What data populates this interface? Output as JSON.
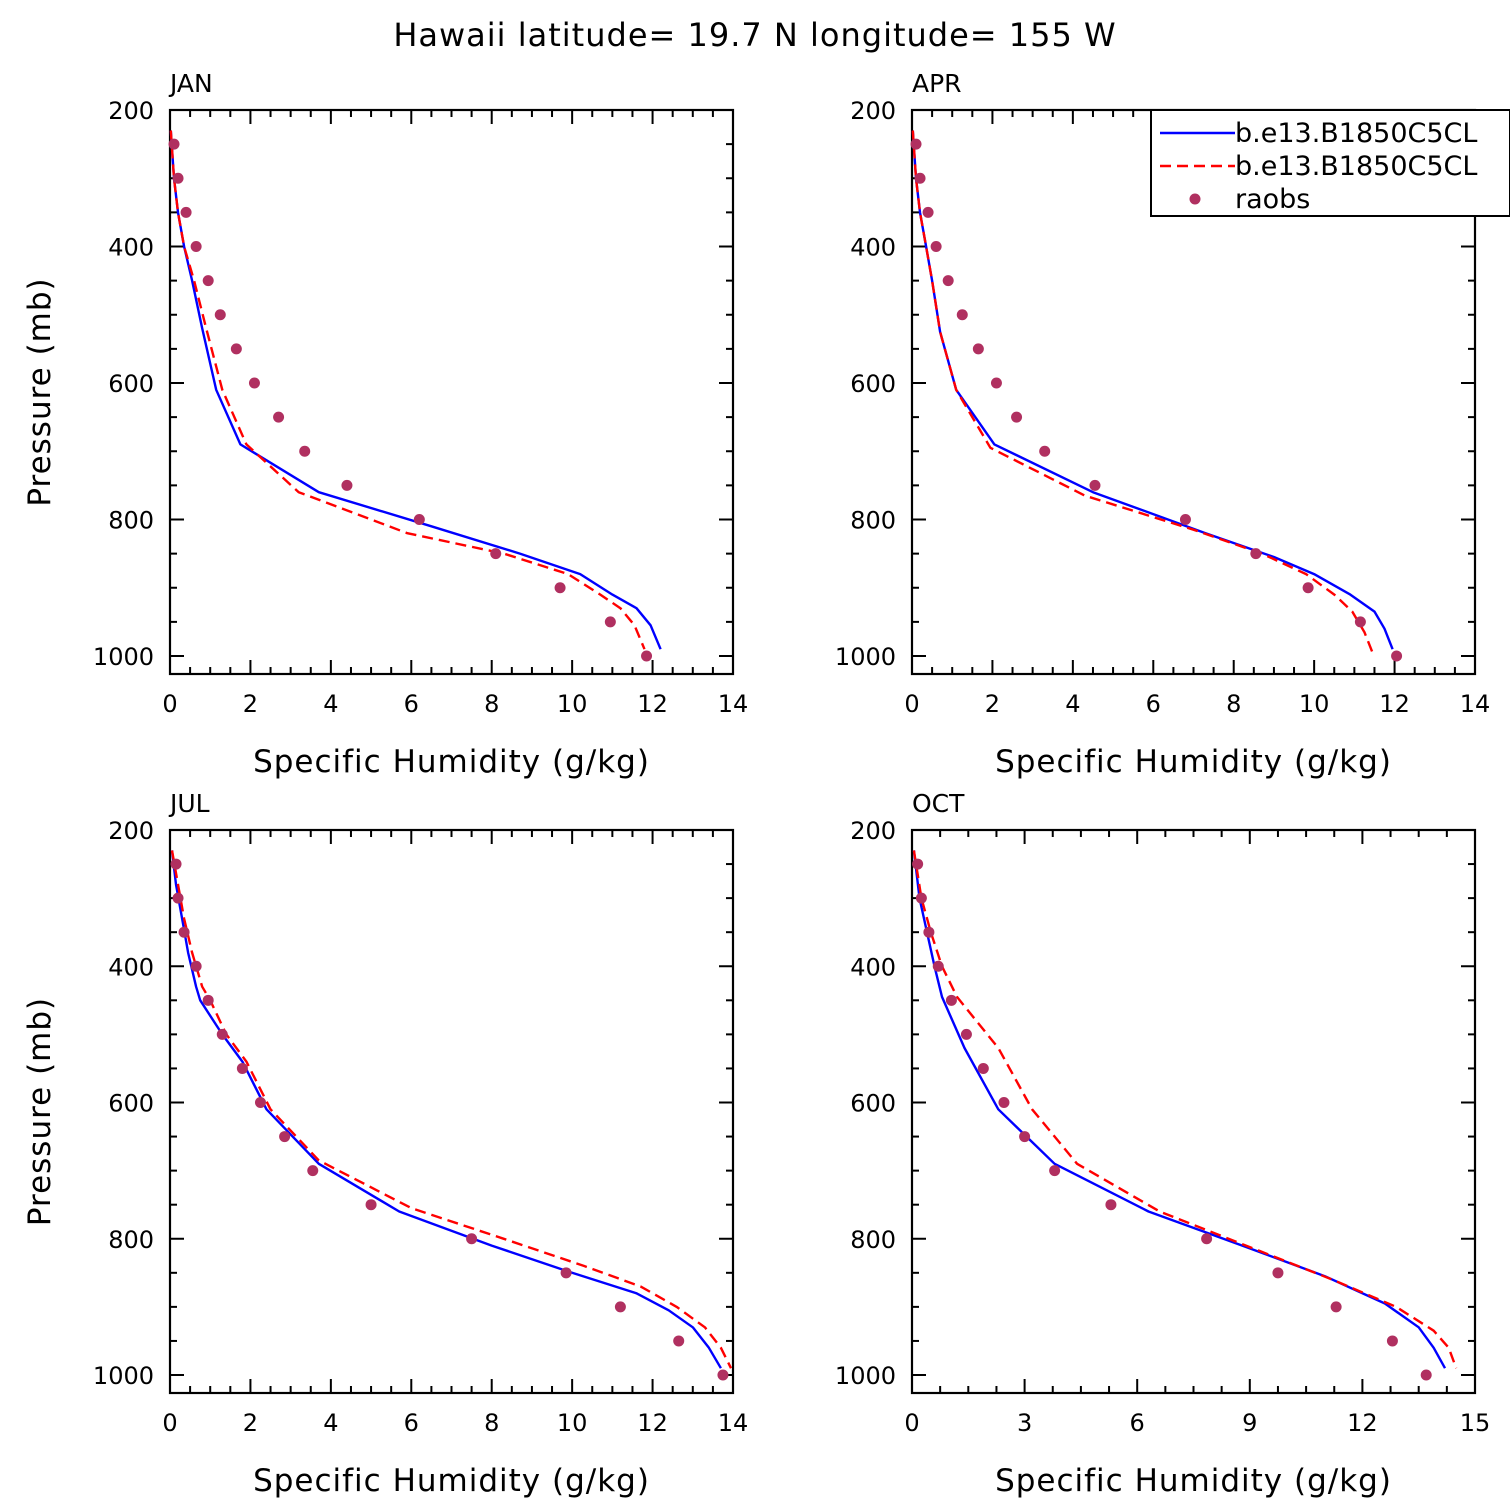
{
  "figure": {
    "title": "Hawaii  latitude= 19.7 N longitude= 155 W"
  },
  "legend": {
    "entries": [
      {
        "label": "b.e13.B1850C5CL",
        "style": "solid",
        "color": "#0000ff"
      },
      {
        "label": "b.e13.B1850C5CL",
        "style": "dashed",
        "color": "#ff0000"
      },
      {
        "label": "raobs",
        "style": "marker",
        "color": "#b03060"
      }
    ]
  },
  "chart_data": [
    {
      "type": "line",
      "panel_label": "JAN",
      "xlabel": "Specific Humidity (g/kg)",
      "ylabel": "Pressure (mb)",
      "xlim": [
        0,
        14
      ],
      "ylim": [
        1000,
        200
      ],
      "y_reversed": true,
      "xticks": [
        0,
        2,
        4,
        6,
        8,
        10,
        12,
        14
      ],
      "yticks": [
        200,
        400,
        600,
        800,
        1000
      ],
      "series": [
        {
          "name": "b.e13.B1850C5CL",
          "style": "solid",
          "color": "#0000ff",
          "x": [
            0.02,
            0.1,
            0.2,
            0.35,
            0.55,
            0.8,
            1.15,
            1.75,
            3.7,
            6.5,
            8.7,
            10.2,
            11.0,
            11.6,
            11.95,
            12.2
          ],
          "y": [
            230,
            300,
            350,
            400,
            450,
            520,
            610,
            690,
            760,
            810,
            850,
            880,
            910,
            930,
            955,
            990
          ]
        },
        {
          "name": "b.e13.B1850C5CL",
          "style": "dashed",
          "color": "#ff0000",
          "x": [
            0.02,
            0.1,
            0.2,
            0.35,
            0.6,
            0.9,
            1.3,
            1.9,
            3.2,
            5.9,
            8.3,
            9.9,
            10.7,
            11.2,
            11.55,
            11.8
          ],
          "y": [
            230,
            300,
            350,
            400,
            450,
            520,
            610,
            690,
            760,
            820,
            850,
            880,
            910,
            930,
            955,
            990
          ]
        },
        {
          "name": "raobs",
          "style": "marker",
          "color": "#b03060",
          "x": [
            0.1,
            0.2,
            0.4,
            0.65,
            0.95,
            1.25,
            1.65,
            2.1,
            2.7,
            3.35,
            4.4,
            6.2,
            8.1,
            9.7,
            10.95,
            11.85
          ],
          "y": [
            250,
            300,
            350,
            400,
            450,
            500,
            550,
            600,
            650,
            700,
            750,
            800,
            850,
            900,
            950,
            1000
          ]
        }
      ]
    },
    {
      "type": "line",
      "panel_label": "APR",
      "xlabel": "Specific Humidity (g/kg)",
      "ylabel": "",
      "xlim": [
        0,
        14
      ],
      "ylim": [
        1000,
        200
      ],
      "y_reversed": true,
      "xticks": [
        0,
        2,
        4,
        6,
        8,
        10,
        12,
        14
      ],
      "yticks": [
        200,
        400,
        600,
        800,
        1000
      ],
      "series": [
        {
          "name": "b.e13.B1850C5CL",
          "style": "solid",
          "color": "#0000ff",
          "x": [
            0.02,
            0.1,
            0.2,
            0.35,
            0.5,
            0.7,
            1.1,
            2.05,
            4.5,
            7.3,
            9.0,
            10.0,
            10.9,
            11.5,
            11.75,
            11.95
          ],
          "y": [
            230,
            300,
            350,
            400,
            450,
            525,
            610,
            690,
            760,
            820,
            855,
            880,
            910,
            935,
            960,
            990
          ]
        },
        {
          "name": "b.e13.B1850C5CL",
          "style": "dashed",
          "color": "#ff0000",
          "x": [
            0.02,
            0.1,
            0.2,
            0.35,
            0.5,
            0.7,
            1.1,
            1.95,
            4.3,
            7.0,
            8.7,
            9.8,
            10.5,
            10.95,
            11.25,
            11.45
          ],
          "y": [
            230,
            300,
            350,
            400,
            450,
            525,
            610,
            695,
            765,
            815,
            850,
            880,
            910,
            935,
            965,
            995
          ]
        },
        {
          "name": "raobs",
          "style": "marker",
          "color": "#b03060",
          "x": [
            0.1,
            0.2,
            0.4,
            0.6,
            0.9,
            1.25,
            1.65,
            2.1,
            2.6,
            3.3,
            4.55,
            6.8,
            8.55,
            9.85,
            11.15,
            12.05
          ],
          "y": [
            250,
            300,
            350,
            400,
            450,
            500,
            550,
            600,
            650,
            700,
            750,
            800,
            850,
            900,
            950,
            1000
          ]
        }
      ]
    },
    {
      "type": "line",
      "panel_label": "JUL",
      "xlabel": "Specific Humidity (g/kg)",
      "ylabel": "Pressure (mb)",
      "xlim": [
        0,
        14
      ],
      "ylim": [
        1000,
        200
      ],
      "y_reversed": true,
      "xticks": [
        0,
        2,
        4,
        6,
        8,
        10,
        12,
        14
      ],
      "yticks": [
        200,
        400,
        600,
        800,
        1000
      ],
      "series": [
        {
          "name": "b.e13.B1850C5CL",
          "style": "solid",
          "color": "#0000ff",
          "x": [
            0.05,
            0.15,
            0.3,
            0.45,
            0.65,
            0.75,
            1.3,
            1.8,
            2.4,
            3.7,
            5.7,
            8.0,
            10.0,
            11.6,
            12.4,
            13.0,
            13.4,
            13.7
          ],
          "y": [
            230,
            280,
            330,
            380,
            430,
            450,
            500,
            540,
            610,
            690,
            760,
            810,
            850,
            880,
            905,
            930,
            960,
            990
          ]
        },
        {
          "name": "b.e13.B1850C5CL",
          "style": "dashed",
          "color": "#ff0000",
          "x": [
            0.05,
            0.2,
            0.35,
            0.55,
            0.8,
            1.0,
            1.4,
            1.9,
            2.5,
            3.7,
            6.0,
            8.3,
            10.3,
            11.7,
            12.6,
            13.3,
            13.7,
            13.95
          ],
          "y": [
            230,
            280,
            330,
            380,
            430,
            450,
            500,
            540,
            610,
            685,
            755,
            800,
            840,
            870,
            900,
            930,
            960,
            990
          ]
        },
        {
          "name": "raobs",
          "style": "marker",
          "color": "#b03060",
          "x": [
            0.15,
            0.2,
            0.35,
            0.65,
            0.95,
            1.3,
            1.8,
            2.25,
            2.85,
            3.55,
            5.0,
            7.5,
            9.85,
            11.2,
            12.65,
            13.75
          ],
          "y": [
            250,
            300,
            350,
            400,
            450,
            500,
            550,
            600,
            650,
            700,
            750,
            800,
            850,
            900,
            950,
            1000
          ]
        }
      ]
    },
    {
      "type": "line",
      "panel_label": "OCT",
      "xlabel": "Specific Humidity (g/kg)",
      "ylabel": "",
      "xlim": [
        0,
        15
      ],
      "ylim": [
        1000,
        200
      ],
      "y_reversed": true,
      "xticks": [
        0,
        3,
        6,
        9,
        12,
        15
      ],
      "yticks": [
        200,
        400,
        600,
        800,
        1000
      ],
      "series": [
        {
          "name": "b.e13.B1850C5CL",
          "style": "solid",
          "color": "#0000ff",
          "x": [
            0.05,
            0.2,
            0.4,
            0.6,
            0.8,
            1.4,
            2.3,
            3.8,
            6.3,
            8.8,
            11.0,
            12.6,
            13.5,
            13.9,
            14.2
          ],
          "y": [
            230,
            300,
            350,
            400,
            445,
            520,
            610,
            690,
            760,
            810,
            855,
            895,
            930,
            960,
            990
          ]
        },
        {
          "name": "b.e13.B1850C5CL",
          "style": "dashed",
          "color": "#ff0000",
          "x": [
            0.05,
            0.25,
            0.5,
            0.8,
            1.2,
            2.3,
            3.2,
            4.4,
            6.6,
            8.9,
            11.2,
            12.9,
            13.9,
            14.3,
            14.5
          ],
          "y": [
            230,
            300,
            350,
            400,
            445,
            520,
            610,
            690,
            760,
            810,
            860,
            900,
            935,
            960,
            990
          ]
        },
        {
          "name": "raobs",
          "style": "marker",
          "color": "#b03060",
          "x": [
            0.15,
            0.25,
            0.45,
            0.7,
            1.05,
            1.45,
            1.9,
            2.45,
            3.0,
            3.8,
            5.3,
            7.85,
            9.75,
            11.3,
            12.8,
            13.7
          ],
          "y": [
            250,
            300,
            350,
            400,
            450,
            500,
            550,
            600,
            650,
            700,
            750,
            800,
            850,
            900,
            950,
            1000
          ]
        }
      ]
    }
  ]
}
